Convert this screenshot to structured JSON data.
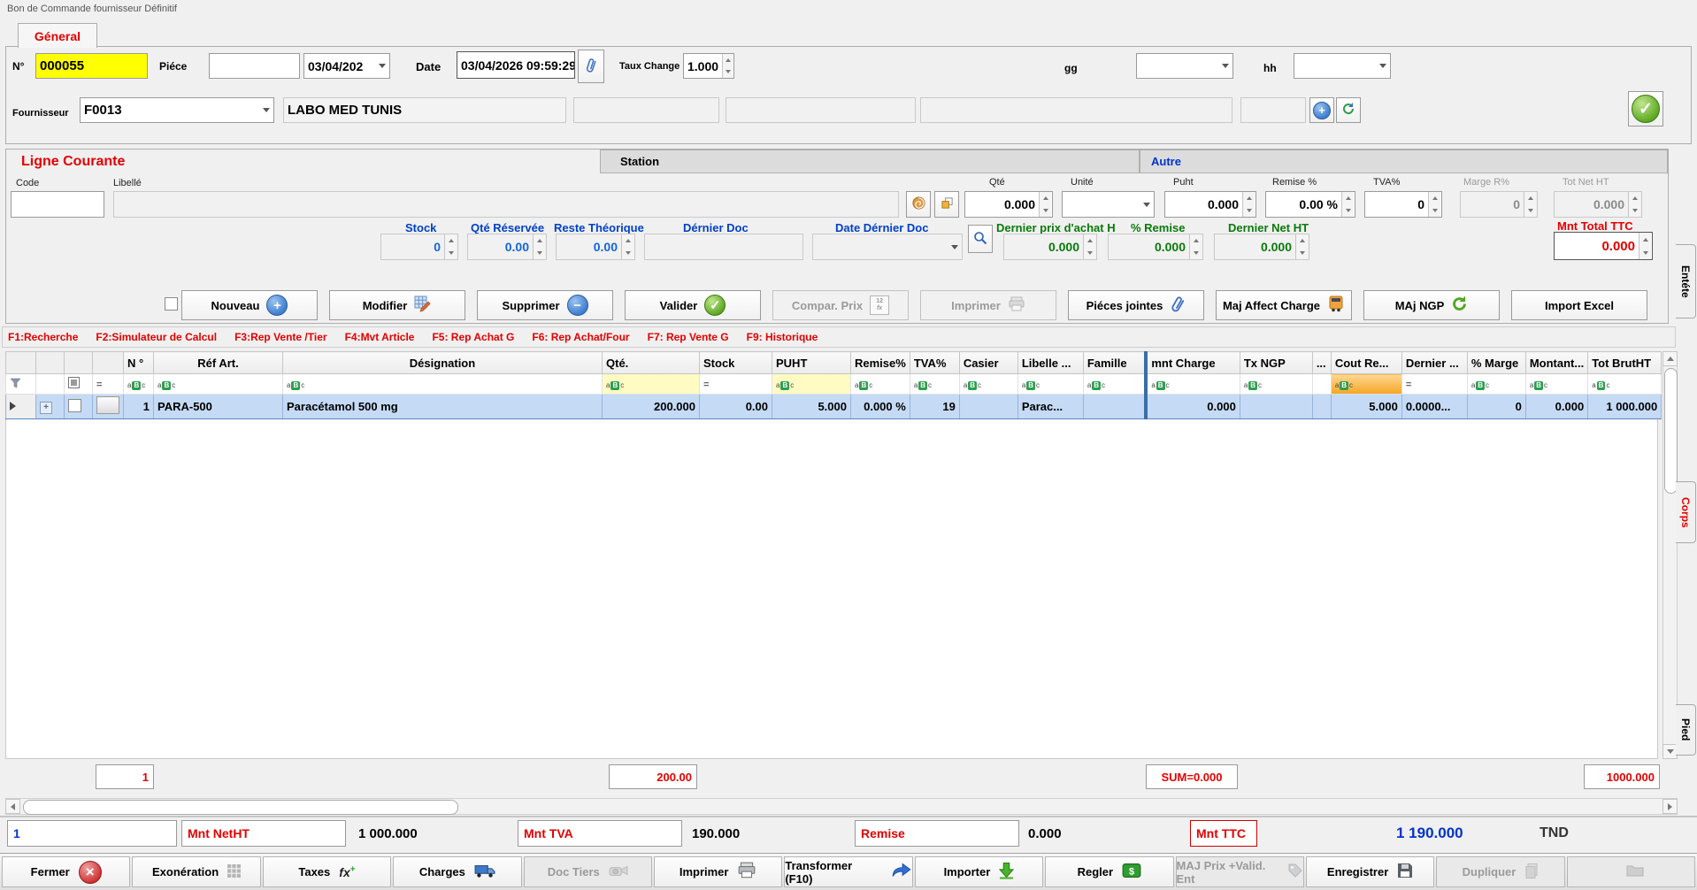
{
  "window": {
    "title": "Bon de Commande fournisseur Définitif"
  },
  "colors": {
    "accent_red": "#e30000",
    "accent_blue": "#0033cc",
    "accent_green": "#0a7a0a",
    "row_selected": "#c5daf5",
    "highlight_yellow": "#ffff00"
  },
  "header": {
    "general_tab": "Géneral",
    "n_label": "N°",
    "n_value": "000055",
    "piece_label": "Piéce",
    "piece_value": "",
    "date_short_value": "03/04/202",
    "date_label": "Date",
    "datetime_value": "03/04/2026 09:59:29",
    "taux_label": "Taux Change",
    "taux_value": "1.000",
    "gg_label": "gg",
    "hh_label": "hh",
    "fournisseur_label": "Fournisseur",
    "fournisseur_code": "F0013",
    "fournisseur_name": "LABO MED TUNIS"
  },
  "ligne": {
    "tab_current": "Ligne Courante",
    "tab_station": "Station",
    "tab_autre": "Autre",
    "code_label": "Code",
    "libelle_label": "Libellé",
    "qte_label": "Qté",
    "qte_value": "0.000",
    "unite_label": "Unité",
    "unite_value": "",
    "puht_label": "Puht",
    "puht_value": "0.000",
    "remise_label": "Remise %",
    "remise_value": "0.00 %",
    "tva_label": "TVA%",
    "tva_value": "0",
    "marge_label": "Marge R%",
    "marge_value": "0",
    "totnet_label": "Tot Net HT",
    "totnet_value": "0.000",
    "stock_label": "Stock",
    "stock_value": "0",
    "qte_res_label": "Qté Réservée",
    "qte_res_value": "0.00",
    "reste_label": "Reste Théorique",
    "reste_value": "0.00",
    "dernier_doc_label": "Dérnier Doc",
    "dernier_doc_value": "",
    "date_dernier_label": "Date Dérnier Doc",
    "date_dernier_value": "",
    "dernier_prix_label": "Dernier prix d'achat H",
    "dernier_prix_value": "0.000",
    "pct_remise_label": "% Remise",
    "pct_remise_value": "0.000",
    "dernier_net_label": "Dernier Net HT",
    "dernier_net_value": "0.000",
    "mnt_total_label": "Mnt Total  TTC",
    "mnt_total_value": "0.000"
  },
  "actions": {
    "nouveau": "Nouveau",
    "modifier": "Modifier",
    "supprimer": "Supprimer",
    "valider": "Valider",
    "compar_prix": "Compar. Prix",
    "imprimer": "Imprimer",
    "pieces_jointes": "Piéces jointes",
    "maj_affect": "Maj Affect Charge",
    "maj_ngp": "MAj NGP",
    "import_excel": "Import Excel"
  },
  "fkeys": [
    "F1:Recherche",
    "F2:Simulateur de Calcul",
    "F3:Rep Vente /Tier",
    "F4:Mvt Article",
    "F5: Rep Achat G",
    "F6: Rep Achat/Four",
    "F7: Rep Vente G",
    "F9: Historique"
  ],
  "grid": {
    "headers": [
      "N °",
      "Réf Art.",
      "Désignation",
      "Qté.",
      "Stock",
      "PUHT",
      "Remise%",
      "TVA%",
      "Casier",
      "Libelle ...",
      "Famille",
      "mnt Charge",
      "Tx NGP",
      "...",
      "Cout Re...",
      "Dernier ...",
      "% Marge",
      "Montant...",
      "Tot BrutHT"
    ],
    "filter_icons_left": [
      "funnel",
      "",
      "checkbox",
      "eq"
    ],
    "filter_icons": [
      "abc",
      "abc",
      "abc",
      "abc",
      "eq",
      "abc",
      "abc",
      "abc",
      "abc",
      "abc",
      "abc",
      "abc",
      "abc",
      "none",
      "abc",
      "eq",
      "abc",
      "abc",
      "abc"
    ],
    "row": [
      "1",
      "PARA-500",
      "Paracétamol 500 mg",
      "200.000",
      "0.00",
      "5.000",
      "0.000 %",
      "19",
      "",
      "Parac...",
      "",
      "0.000",
      "",
      "",
      "5.000",
      "0.0000...",
      "0",
      "0.000",
      "1 000.000"
    ],
    "summary": {
      "count": "1",
      "qte": "200.00",
      "charge": "SUM=0.000",
      "total": "1000.000"
    }
  },
  "footer": {
    "row_count": "1",
    "net_label": "Mnt NetHT",
    "net_value": "1 000.000",
    "tva_label": "Mnt TVA",
    "tva_value": "190.000",
    "remise_label": "Remise",
    "remise_value": "0.000",
    "ttc_label": "Mnt TTC",
    "ttc_value": "1 190.000",
    "currency": "TND"
  },
  "bottom_bar": [
    {
      "name": "fermer-button",
      "label": "Fermer",
      "icon": "x-circle-icon",
      "enabled": true
    },
    {
      "name": "exoneration-button",
      "label": "Exonération",
      "icon": "grid-icon",
      "enabled": true
    },
    {
      "name": "taxes-button",
      "label": "Taxes",
      "icon": "fx-icon",
      "enabled": true
    },
    {
      "name": "charges-button",
      "label": "Charges",
      "icon": "truck-icon",
      "enabled": true
    },
    {
      "name": "doc-tiers-button",
      "label": "Doc Tiers",
      "icon": "projector-icon",
      "enabled": false
    },
    {
      "name": "imprimer-button",
      "label": "Imprimer",
      "icon": "printer-icon",
      "enabled": true
    },
    {
      "name": "transformer-button",
      "label": "Transformer (F10)",
      "icon": "forward-arrow-icon",
      "enabled": true
    },
    {
      "name": "importer-button",
      "label": "Importer",
      "icon": "download-arrow-icon",
      "enabled": true
    },
    {
      "name": "regler-button",
      "label": "Regler",
      "icon": "dollar-note-icon",
      "enabled": true
    },
    {
      "name": "maj-prix-button",
      "label": "MAJ Prix +Valid. Ent",
      "icon": "price-tag-icon",
      "enabled": false
    },
    {
      "name": "enregistrer-button",
      "label": "Enregistrer",
      "icon": "floppy-icon",
      "enabled": true
    },
    {
      "name": "dupliquer-button",
      "label": "Dupliquer",
      "icon": "copy-pages-icon",
      "enabled": false
    },
    {
      "name": "open-folder-button",
      "label": "",
      "icon": "folder-icon",
      "enabled": false
    }
  ],
  "side_tabs": [
    "Entéte",
    "Corps",
    "Pied"
  ]
}
